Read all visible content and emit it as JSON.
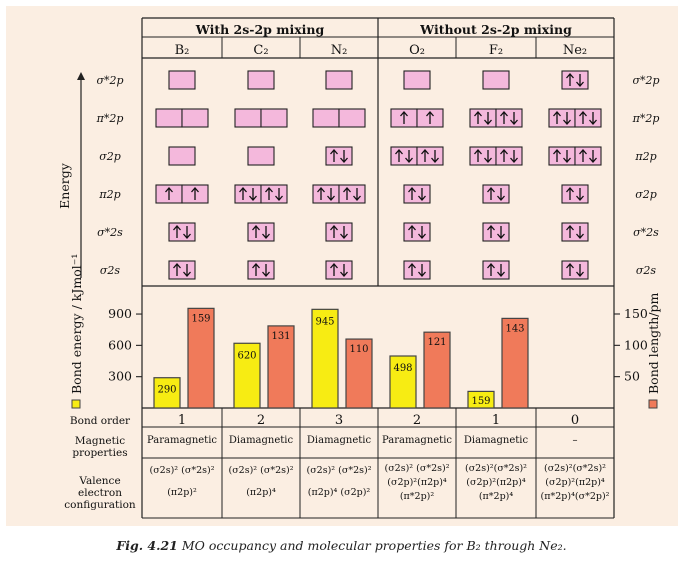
{
  "header": {
    "group_left": "With 2s-2p mixing",
    "group_right": "Without 2s-2p mixing",
    "molecules": [
      "B₂",
      "C₂",
      "N₂",
      "O₂",
      "F₂",
      "Ne₂"
    ]
  },
  "axis": {
    "energy_label": "Energy",
    "bond_energy_label": "Bond energy / kJmol⁻¹",
    "bond_length_label": "Bond length/pm"
  },
  "left_orbital_labels": [
    "σ*2p",
    "π*2p",
    "σ2p",
    "π2p",
    "σ*2s",
    "σ2s"
  ],
  "right_orbital_labels": [
    "σ*2p",
    "π*2p",
    "π2p",
    "σ2p",
    "σ*2s",
    "σ2s"
  ],
  "occupancy": {
    "note": "electrons per box, rows top-to-bottom as labelled on each side",
    "B2": [
      [
        0
      ],
      [
        0,
        0
      ],
      [
        0
      ],
      [
        1,
        1
      ],
      [
        2
      ],
      [
        2
      ]
    ],
    "C2": [
      [
        0
      ],
      [
        0,
        0
      ],
      [
        0
      ],
      [
        2,
        2
      ],
      [
        2
      ],
      [
        2
      ]
    ],
    "N2": [
      [
        0
      ],
      [
        0,
        0
      ],
      [
        2
      ],
      [
        2,
        2
      ],
      [
        2
      ],
      [
        2
      ]
    ],
    "O2": [
      [
        0
      ],
      [
        1,
        1
      ],
      [
        2,
        2
      ],
      [
        2
      ],
      [
        2
      ],
      [
        2
      ]
    ],
    "F2": [
      [
        0
      ],
      [
        2,
        2
      ],
      [
        2,
        2
      ],
      [
        2
      ],
      [
        2
      ],
      [
        2
      ]
    ],
    "Ne2": [
      [
        2
      ],
      [
        2,
        2
      ],
      [
        2,
        2
      ],
      [
        2
      ],
      [
        2
      ],
      [
        2
      ]
    ]
  },
  "chart_data": {
    "type": "bar",
    "categories": [
      "B₂",
      "C₂",
      "N₂",
      "O₂",
      "F₂",
      "Ne₂"
    ],
    "series": [
      {
        "name": "Bond energy / kJmol⁻¹",
        "values": [
          290,
          620,
          945,
          498,
          159,
          null
        ],
        "color": "#f7ec13",
        "axis": "left"
      },
      {
        "name": "Bond length/pm",
        "values": [
          159,
          131,
          110,
          121,
          143,
          null
        ],
        "color": "#f07a5a",
        "axis": "right"
      }
    ],
    "left_axis": {
      "ticks": [
        300,
        600,
        900
      ]
    },
    "right_axis": {
      "ticks": [
        50,
        100,
        150
      ]
    }
  },
  "properties": {
    "bond_order_label": "Bond order",
    "bond_orders": [
      "1",
      "2",
      "3",
      "2",
      "1",
      "0"
    ],
    "magnetic_label": [
      "Magnetic",
      "properties"
    ],
    "magnetic": [
      "Paramagnetic",
      "Diamagnetic",
      "Diamagnetic",
      "Paramagnetic",
      "Diamagnetic",
      "–"
    ],
    "config_label": [
      "Valence",
      "electron",
      "configuration"
    ],
    "configs": [
      [
        "(σ2s)² (σ*2s)²",
        "(π2p)²"
      ],
      [
        "(σ2s)² (σ*2s)²",
        "(π2p)⁴"
      ],
      [
        "(σ2s)² (σ*2s)²",
        "(π2p)⁴ (σ2p)²"
      ],
      [
        "(σ2s)² (σ*2s)²",
        "(σ2p)²(π2p)⁴",
        "(π*2p)²"
      ],
      [
        "(σ2s)²(σ*2s)²",
        "(σ2p)²(π2p)⁴",
        "(π*2p)⁴"
      ],
      [
        "(σ2s)²(σ*2s)²",
        "(σ2p)²(π2p)⁴",
        "(π*2p)⁴(σ*2p)²"
      ]
    ]
  },
  "caption": {
    "fig": "Fig. 4.21",
    "text": "MO occupancy and molecular properties for B₂ through Ne₂."
  },
  "colors": {
    "panel": "#fbeee2",
    "box": "#f4b8dc",
    "energy_bar": "#f7ec13",
    "length_bar": "#f07a5a"
  }
}
